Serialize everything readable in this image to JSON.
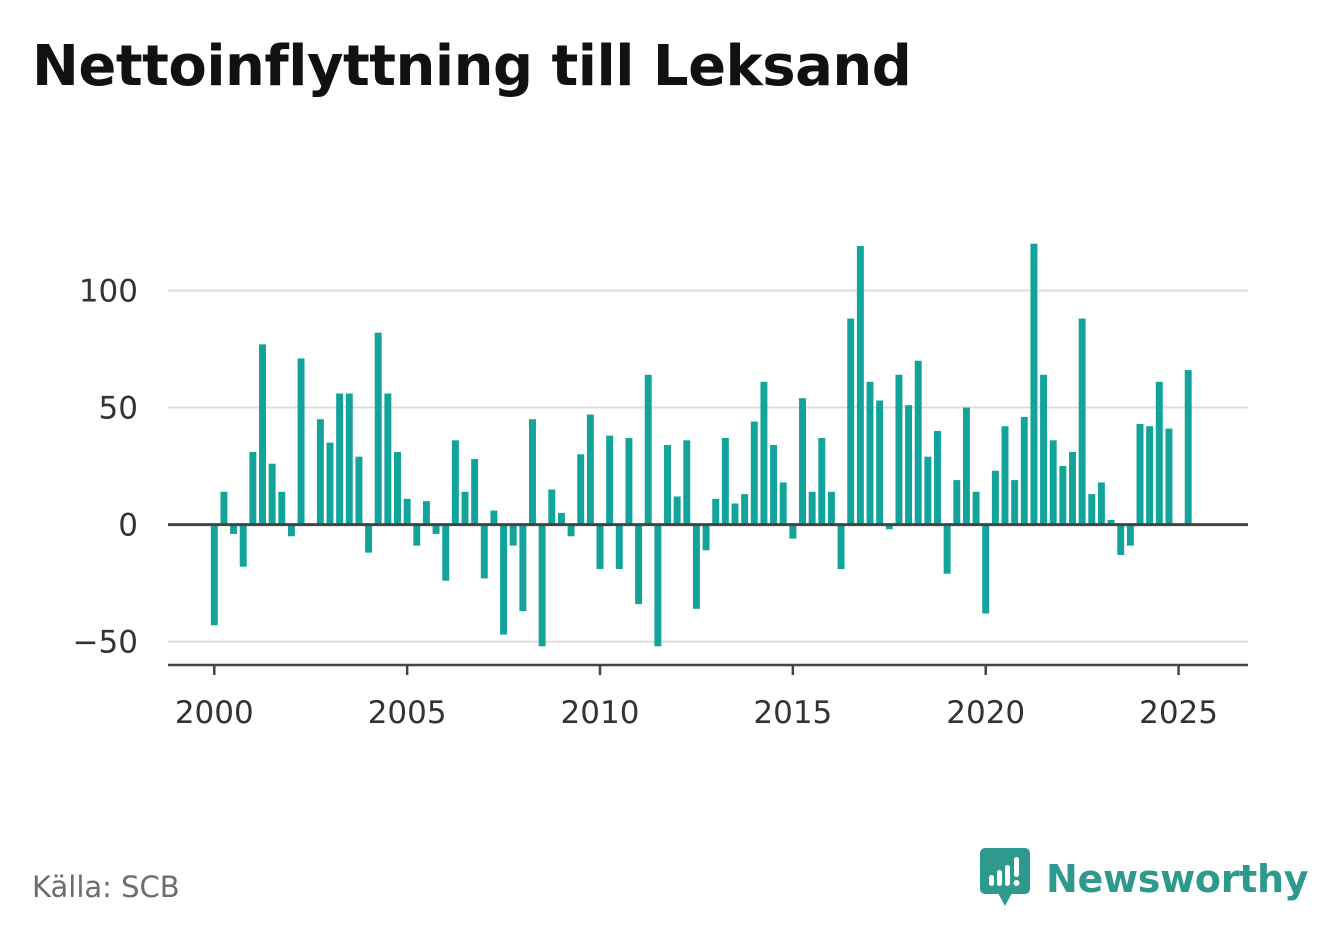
{
  "title": "Nettoinflyttning till Leksand",
  "source": "Källa: SCB",
  "brand": {
    "name": "Newsworthy",
    "icon": "bar-chart-speech-bubble-icon",
    "color": "#2e9a8e"
  },
  "colors": {
    "bars": "#12a39a",
    "grid": "#dddddd",
    "zero_line": "#444444",
    "axis": "#444444"
  },
  "chart_data": {
    "type": "bar",
    "title": "Nettoinflyttning till Leksand",
    "xlabel": "",
    "ylabel": "",
    "ylim": [
      -60,
      125
    ],
    "xlim": [
      1998.8,
      2026.8
    ],
    "yticks": [
      -50,
      0,
      50,
      100
    ],
    "ytick_labels": [
      "−50",
      "0",
      "50",
      "100"
    ],
    "xticks": [
      2000,
      2005,
      2010,
      2015,
      2020,
      2025
    ],
    "xtick_labels": [
      "2000",
      "2005",
      "2010",
      "2015",
      "2020",
      "2025"
    ],
    "grid": true,
    "legend": "none",
    "series": [
      {
        "x": [
          "2000-Q1",
          "2000-Q2",
          "2000-Q3",
          "2000-Q4",
          "2001-Q1",
          "2001-Q2",
          "2001-Q3",
          "2001-Q4",
          "2002-Q1",
          "2002-Q2",
          "2002-Q3",
          "2002-Q4",
          "2003-Q1",
          "2003-Q2",
          "2003-Q3",
          "2003-Q4",
          "2004-Q1",
          "2004-Q2",
          "2004-Q3",
          "2004-Q4",
          "2005-Q1",
          "2005-Q2",
          "2005-Q3",
          "2005-Q4",
          "2006-Q1",
          "2006-Q2",
          "2006-Q3",
          "2006-Q4",
          "2007-Q1",
          "2007-Q2",
          "2007-Q3",
          "2007-Q4",
          "2008-Q1",
          "2008-Q2",
          "2008-Q3",
          "2008-Q4",
          "2009-Q1",
          "2009-Q2",
          "2009-Q3",
          "2009-Q4",
          "2010-Q1",
          "2010-Q2",
          "2010-Q3",
          "2010-Q4",
          "2011-Q1",
          "2011-Q2",
          "2011-Q3",
          "2011-Q4",
          "2012-Q1",
          "2012-Q2",
          "2012-Q3",
          "2012-Q4",
          "2013-Q1",
          "2013-Q2",
          "2013-Q3",
          "2013-Q4",
          "2014-Q1",
          "2014-Q2",
          "2014-Q3",
          "2014-Q4",
          "2015-Q1",
          "2015-Q2",
          "2015-Q3",
          "2015-Q4",
          "2016-Q1",
          "2016-Q2",
          "2016-Q3",
          "2016-Q4",
          "2017-Q1",
          "2017-Q2",
          "2017-Q3",
          "2017-Q4",
          "2018-Q1",
          "2018-Q2",
          "2018-Q3",
          "2018-Q4",
          "2019-Q1",
          "2019-Q2",
          "2019-Q3",
          "2019-Q4",
          "2020-Q1",
          "2020-Q2",
          "2020-Q3",
          "2020-Q4",
          "2021-Q1",
          "2021-Q2",
          "2021-Q3",
          "2021-Q4",
          "2022-Q1",
          "2022-Q2",
          "2022-Q3",
          "2022-Q4",
          "2023-Q1",
          "2023-Q2",
          "2023-Q3",
          "2023-Q4",
          "2024-Q1",
          "2024-Q2",
          "2024-Q3",
          "2024-Q4",
          "2025-Q1",
          "2025-Q2"
        ],
        "values": [
          -43,
          14,
          -4,
          -18,
          31,
          77,
          26,
          14,
          -5,
          71,
          0,
          45,
          35,
          56,
          56,
          29,
          -12,
          82,
          56,
          31,
          11,
          -9,
          10,
          -4,
          -24,
          36,
          14,
          28,
          -23,
          6,
          -47,
          -9,
          -37,
          45,
          -52,
          15,
          5,
          -5,
          30,
          47,
          -19,
          38,
          -19,
          37,
          -34,
          64,
          -52,
          34,
          12,
          36,
          -36,
          -11,
          11,
          37,
          9,
          13,
          44,
          61,
          34,
          18,
          -6,
          54,
          14,
          37,
          14,
          -19,
          88,
          119,
          61,
          53,
          -2,
          64,
          51,
          70,
          29,
          40,
          -21,
          19,
          50,
          14,
          -38,
          23,
          42,
          19,
          46,
          120,
          64,
          36,
          25,
          31,
          88,
          13,
          18,
          2,
          -13,
          -9,
          43,
          42,
          61,
          41,
          0,
          66
        ]
      }
    ]
  }
}
